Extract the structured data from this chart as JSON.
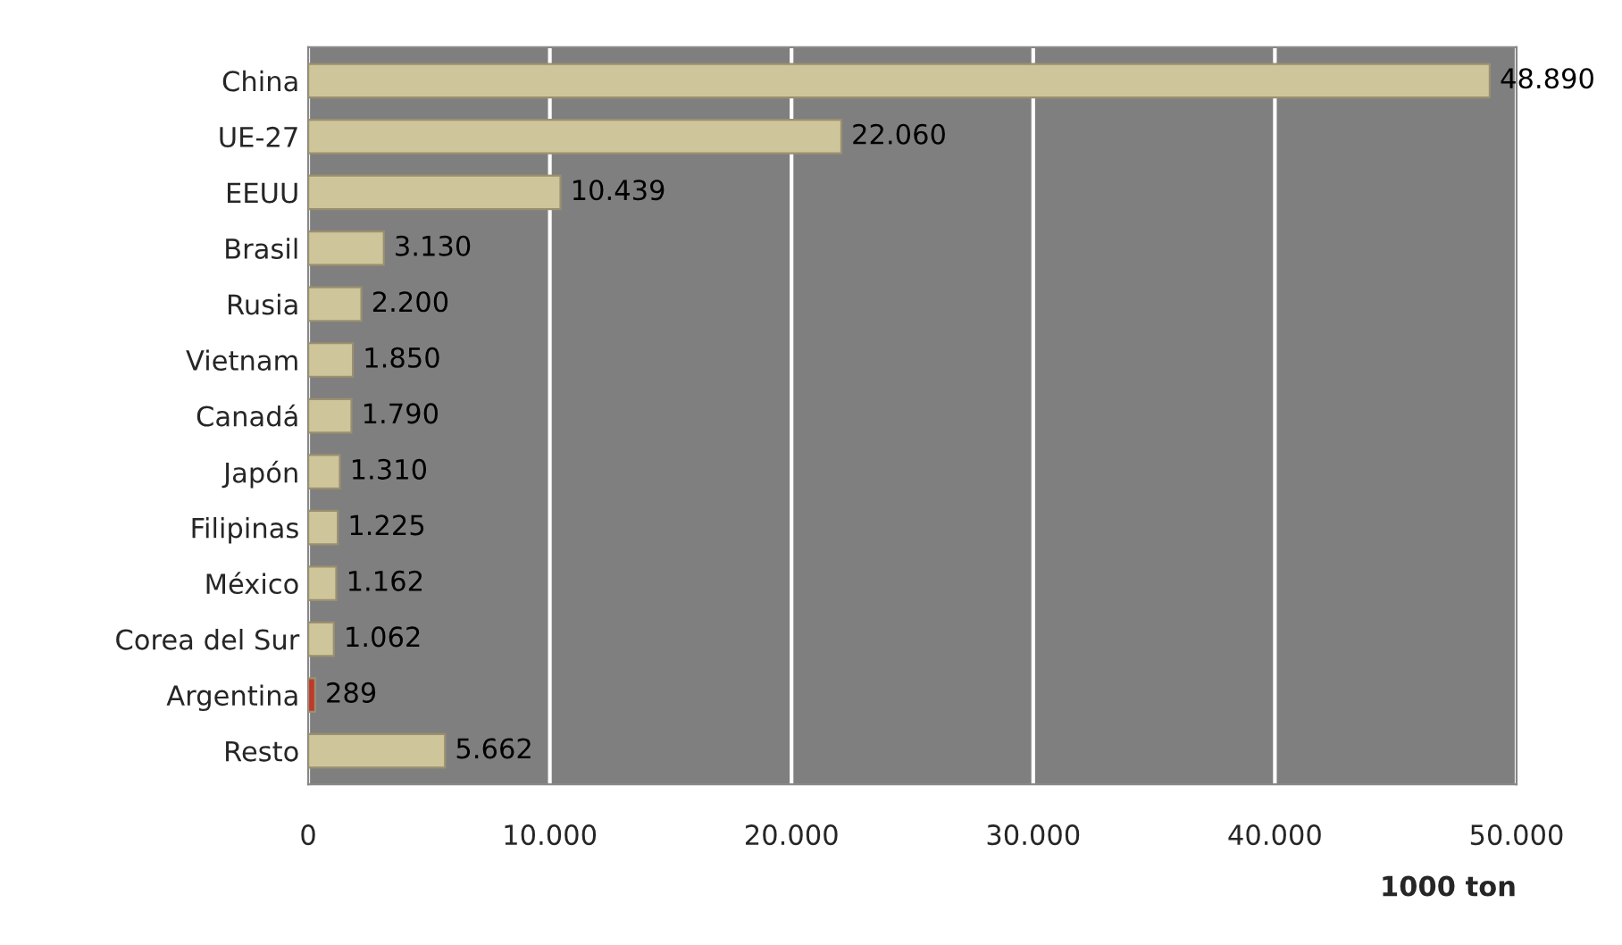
{
  "chart_data": {
    "type": "bar",
    "orientation": "horizontal",
    "xlabel": "1000 ton",
    "categories": [
      "China",
      "UE-27",
      "EEUU",
      "Brasil",
      "Rusia",
      "Vietnam",
      "Canadá",
      "Japón",
      "Filipinas",
      "México",
      "Corea del Sur",
      "Argentina",
      "Resto"
    ],
    "values": [
      48890,
      22060,
      10439,
      3130,
      2200,
      1850,
      1790,
      1310,
      1225,
      1162,
      1062,
      289,
      5662
    ],
    "colors": [
      "#cfc59a",
      "#cfc59a",
      "#cfc59a",
      "#cfc59a",
      "#cfc59a",
      "#cfc59a",
      "#cfc59a",
      "#cfc59a",
      "#cfc59a",
      "#cfc59a",
      "#cfc59a",
      "#c0392b",
      "#cfc59a"
    ],
    "value_labels": [
      "48.890",
      "22.060",
      "10.439",
      "3.130",
      "2.200",
      "1.850",
      "1.790",
      "1.310",
      "1.225",
      "1.162",
      "1.062",
      "289",
      "5.662"
    ],
    "xlim": [
      0,
      50000
    ],
    "xticks": [
      {
        "value": 0,
        "label": "0"
      },
      {
        "value": 10000,
        "label": "10.000"
      },
      {
        "value": 20000,
        "label": "20.000"
      },
      {
        "value": 30000,
        "label": "30.000"
      },
      {
        "value": 40000,
        "label": "40.000"
      },
      {
        "value": 50000,
        "label": "50.000"
      }
    ],
    "grid": "x",
    "legend": false
  }
}
